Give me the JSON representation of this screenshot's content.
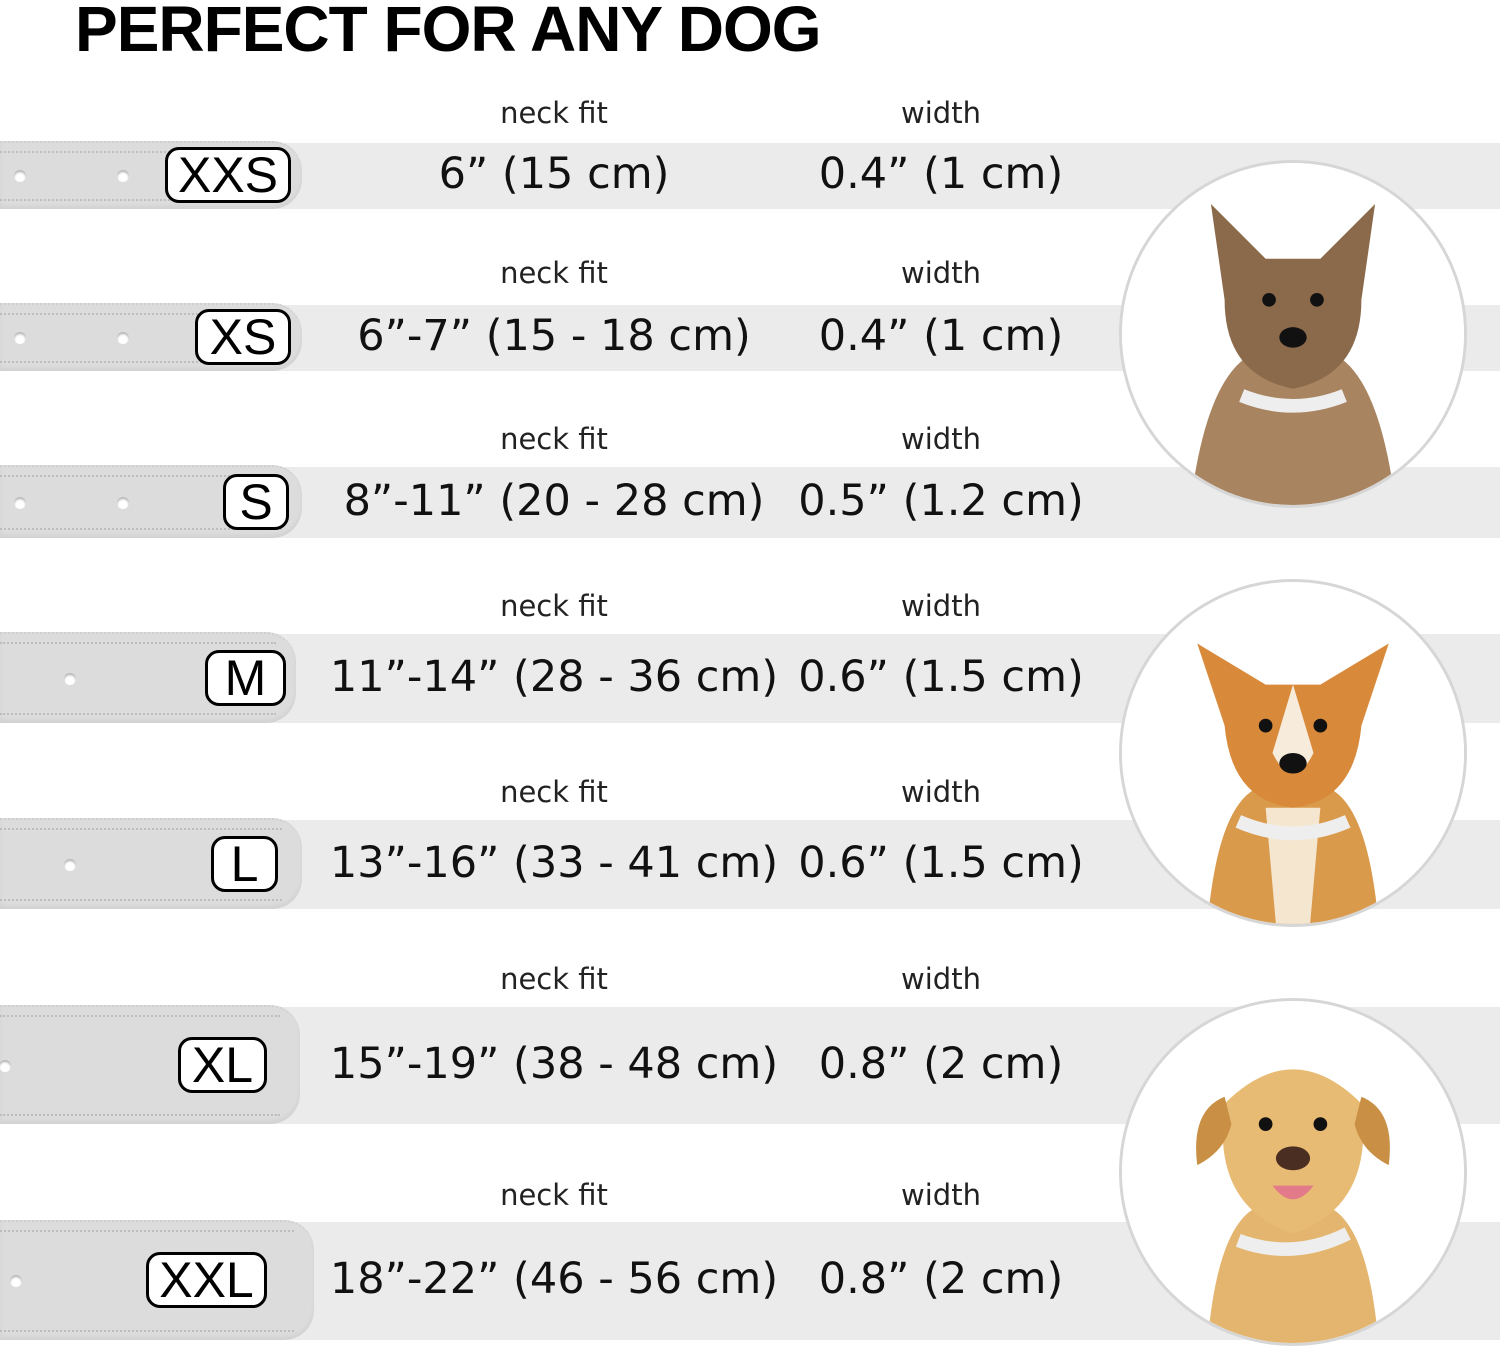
{
  "title": "PERFECT FOR ANY DOG",
  "column_labels": {
    "neck_fit": "neck fit",
    "width": "width"
  },
  "sizes": [
    {
      "size": "XXS",
      "neck_fit": "6” (15 cm)",
      "width": "0.4” (1 cm)"
    },
    {
      "size": "XS",
      "neck_fit": "6”-7” (15 - 18 cm)",
      "width": "0.4” (1 cm)"
    },
    {
      "size": "S",
      "neck_fit": "8”-11” (20 - 28 cm)",
      "width": "0.5” (1.2 cm)"
    },
    {
      "size": "M",
      "neck_fit": "11”-14” (28 - 36 cm)",
      "width": "0.6” (1.5 cm)"
    },
    {
      "size": "L",
      "neck_fit": "13”-16” (33 - 41 cm)",
      "width": "0.6” (1.5 cm)"
    },
    {
      "size": "XL",
      "neck_fit": "15”-19” (38 - 48 cm)",
      "width": "0.8” (2 cm)"
    },
    {
      "size": "XXL",
      "neck_fit": "18”-22” (46 - 56 cm)",
      "width": "0.8” (2 cm)"
    }
  ],
  "images": [
    "small-terrier-dog-photo",
    "corgi-dog-photo",
    "labrador-dog-photo"
  ],
  "colors": {
    "band": "#ebebeb",
    "collar": "#dcdcdc"
  }
}
